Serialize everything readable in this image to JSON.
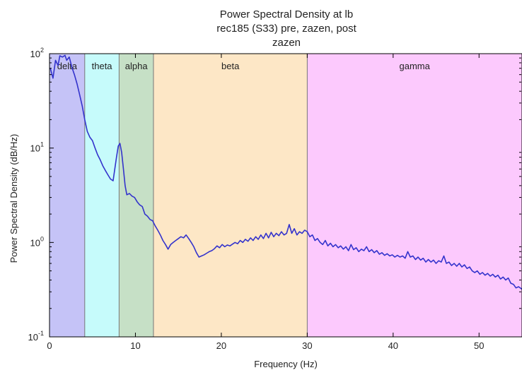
{
  "chart_data": {
    "type": "line",
    "title_lines": [
      "Power Spectral Density at lb",
      "rec185 (S33) pre, zazen, post",
      "zazen"
    ],
    "xlabel": "Frequency (Hz)",
    "ylabel": "Power Spectral Density (dB/Hz)",
    "xlim": [
      0,
      55
    ],
    "ylim": [
      0.1,
      100
    ],
    "yscale": "log",
    "grid": false,
    "x_ticks": [
      {
        "value": 0,
        "label": "0"
      },
      {
        "value": 10,
        "label": "10"
      },
      {
        "value": 20,
        "label": "20"
      },
      {
        "value": 30,
        "label": "30"
      },
      {
        "value": 40,
        "label": "40"
      },
      {
        "value": 50,
        "label": "50"
      }
    ],
    "y_ticks": [
      {
        "value": 0.1,
        "base": "10",
        "exp": "-1"
      },
      {
        "value": 1,
        "base": "10",
        "exp": "0"
      },
      {
        "value": 10,
        "base": "10",
        "exp": "1"
      },
      {
        "value": 100,
        "base": "10",
        "exp": "2"
      }
    ],
    "bands": [
      {
        "label": "delta",
        "start": 0,
        "end": 4.1,
        "color": "#c5c3f7"
      },
      {
        "label": "theta",
        "start": 4.1,
        "end": 8.1,
        "color": "#c6fbfb"
      },
      {
        "label": "alpha",
        "start": 8.1,
        "end": 12.1,
        "color": "#c6e0c6"
      },
      {
        "label": "beta",
        "start": 12.1,
        "end": 30,
        "color": "#fde7c6"
      },
      {
        "label": "gamma",
        "start": 30,
        "end": 55,
        "color": "#fcc9fd"
      }
    ],
    "series": [
      {
        "color": "#3333cc",
        "points": [
          [
            0.1,
            70
          ],
          [
            0.4,
            55
          ],
          [
            0.7,
            85
          ],
          [
            1.0,
            75
          ],
          [
            1.2,
            95
          ],
          [
            1.5,
            92
          ],
          [
            1.8,
            96
          ],
          [
            2.0,
            85
          ],
          [
            2.3,
            92
          ],
          [
            2.6,
            72
          ],
          [
            2.9,
            60
          ],
          [
            3.2,
            48
          ],
          [
            3.5,
            37
          ],
          [
            3.8,
            28
          ],
          [
            4.1,
            20
          ],
          [
            4.4,
            15
          ],
          [
            4.7,
            13
          ],
          [
            5.0,
            12
          ],
          [
            5.3,
            10
          ],
          [
            5.6,
            8.5
          ],
          [
            5.9,
            7.5
          ],
          [
            6.2,
            6.5
          ],
          [
            6.5,
            5.8
          ],
          [
            6.8,
            5.2
          ],
          [
            7.1,
            4.7
          ],
          [
            7.4,
            4.5
          ],
          [
            7.6,
            6.0
          ],
          [
            7.8,
            8.0
          ],
          [
            8.0,
            10.5
          ],
          [
            8.2,
            11.2
          ],
          [
            8.4,
            9.0
          ],
          [
            8.6,
            6.0
          ],
          [
            8.8,
            4.0
          ],
          [
            9.0,
            3.2
          ],
          [
            9.3,
            3.3
          ],
          [
            9.6,
            3.1
          ],
          [
            9.9,
            3.0
          ],
          [
            10.2,
            2.7
          ],
          [
            10.5,
            2.5
          ],
          [
            10.8,
            2.4
          ],
          [
            11.1,
            2.0
          ],
          [
            11.4,
            1.9
          ],
          [
            11.7,
            1.75
          ],
          [
            12.0,
            1.7
          ],
          [
            12.3,
            1.5
          ],
          [
            12.6,
            1.35
          ],
          [
            12.9,
            1.2
          ],
          [
            13.2,
            1.05
          ],
          [
            13.5,
            0.95
          ],
          [
            13.8,
            0.85
          ],
          [
            14.1,
            0.95
          ],
          [
            14.4,
            1.0
          ],
          [
            14.7,
            1.05
          ],
          [
            15.0,
            1.1
          ],
          [
            15.3,
            1.15
          ],
          [
            15.6,
            1.12
          ],
          [
            15.9,
            1.2
          ],
          [
            16.2,
            1.1
          ],
          [
            16.5,
            1.0
          ],
          [
            16.8,
            0.9
          ],
          [
            17.1,
            0.78
          ],
          [
            17.4,
            0.7
          ],
          [
            17.7,
            0.72
          ],
          [
            18.0,
            0.74
          ],
          [
            18.3,
            0.77
          ],
          [
            18.6,
            0.8
          ],
          [
            18.9,
            0.82
          ],
          [
            19.2,
            0.86
          ],
          [
            19.5,
            0.92
          ],
          [
            19.8,
            0.88
          ],
          [
            20.1,
            0.95
          ],
          [
            20.4,
            0.9
          ],
          [
            20.7,
            0.94
          ],
          [
            21.0,
            0.92
          ],
          [
            21.3,
            0.96
          ],
          [
            21.6,
            1.0
          ],
          [
            21.9,
            0.97
          ],
          [
            22.2,
            1.05
          ],
          [
            22.5,
            1.0
          ],
          [
            22.8,
            1.08
          ],
          [
            23.1,
            1.03
          ],
          [
            23.4,
            1.12
          ],
          [
            23.7,
            1.05
          ],
          [
            24.0,
            1.15
          ],
          [
            24.3,
            1.08
          ],
          [
            24.6,
            1.2
          ],
          [
            24.9,
            1.1
          ],
          [
            25.2,
            1.25
          ],
          [
            25.5,
            1.12
          ],
          [
            25.8,
            1.28
          ],
          [
            26.1,
            1.15
          ],
          [
            26.4,
            1.25
          ],
          [
            26.7,
            1.18
          ],
          [
            27.0,
            1.3
          ],
          [
            27.3,
            1.2
          ],
          [
            27.6,
            1.25
          ],
          [
            27.9,
            1.55
          ],
          [
            28.2,
            1.25
          ],
          [
            28.5,
            1.4
          ],
          [
            28.8,
            1.2
          ],
          [
            29.1,
            1.3
          ],
          [
            29.4,
            1.25
          ],
          [
            29.7,
            1.35
          ],
          [
            30.0,
            1.3
          ],
          [
            30.3,
            1.15
          ],
          [
            30.6,
            1.2
          ],
          [
            30.9,
            1.05
          ],
          [
            31.2,
            1.1
          ],
          [
            31.5,
            1.0
          ],
          [
            31.8,
            0.95
          ],
          [
            32.1,
            1.05
          ],
          [
            32.4,
            0.92
          ],
          [
            32.7,
            0.98
          ],
          [
            33.0,
            0.9
          ],
          [
            33.3,
            0.95
          ],
          [
            33.6,
            0.88
          ],
          [
            33.9,
            0.92
          ],
          [
            34.2,
            0.85
          ],
          [
            34.5,
            0.9
          ],
          [
            34.8,
            0.82
          ],
          [
            35.1,
            0.95
          ],
          [
            35.4,
            0.84
          ],
          [
            35.7,
            0.88
          ],
          [
            36.0,
            0.8
          ],
          [
            36.3,
            0.85
          ],
          [
            36.6,
            0.82
          ],
          [
            36.9,
            0.9
          ],
          [
            37.2,
            0.8
          ],
          [
            37.5,
            0.84
          ],
          [
            37.8,
            0.78
          ],
          [
            38.1,
            0.82
          ],
          [
            38.4,
            0.75
          ],
          [
            38.7,
            0.78
          ],
          [
            39.0,
            0.73
          ],
          [
            39.3,
            0.76
          ],
          [
            39.6,
            0.72
          ],
          [
            39.9,
            0.74
          ],
          [
            40.2,
            0.7
          ],
          [
            40.5,
            0.73
          ],
          [
            40.8,
            0.7
          ],
          [
            41.1,
            0.72
          ],
          [
            41.4,
            0.68
          ],
          [
            41.7,
            0.8
          ],
          [
            42.0,
            0.7
          ],
          [
            42.3,
            0.72
          ],
          [
            42.6,
            0.66
          ],
          [
            42.9,
            0.7
          ],
          [
            43.2,
            0.65
          ],
          [
            43.5,
            0.68
          ],
          [
            43.8,
            0.62
          ],
          [
            44.1,
            0.66
          ],
          [
            44.4,
            0.62
          ],
          [
            44.7,
            0.65
          ],
          [
            45.0,
            0.6
          ],
          [
            45.3,
            0.64
          ],
          [
            45.6,
            0.62
          ],
          [
            45.9,
            0.72
          ],
          [
            46.2,
            0.6
          ],
          [
            46.5,
            0.62
          ],
          [
            46.8,
            0.57
          ],
          [
            47.1,
            0.6
          ],
          [
            47.4,
            0.56
          ],
          [
            47.7,
            0.6
          ],
          [
            48.0,
            0.55
          ],
          [
            48.3,
            0.58
          ],
          [
            48.6,
            0.53
          ],
          [
            48.9,
            0.55
          ],
          [
            49.2,
            0.5
          ],
          [
            49.5,
            0.48
          ],
          [
            49.8,
            0.5
          ],
          [
            50.1,
            0.46
          ],
          [
            50.4,
            0.48
          ],
          [
            50.7,
            0.45
          ],
          [
            51.0,
            0.47
          ],
          [
            51.3,
            0.44
          ],
          [
            51.6,
            0.46
          ],
          [
            51.9,
            0.43
          ],
          [
            52.2,
            0.45
          ],
          [
            52.5,
            0.41
          ],
          [
            52.8,
            0.43
          ],
          [
            53.1,
            0.4
          ],
          [
            53.4,
            0.42
          ],
          [
            53.7,
            0.37
          ],
          [
            54.0,
            0.36
          ],
          [
            54.3,
            0.33
          ],
          [
            54.6,
            0.34
          ],
          [
            55.0,
            0.32
          ]
        ]
      }
    ]
  }
}
